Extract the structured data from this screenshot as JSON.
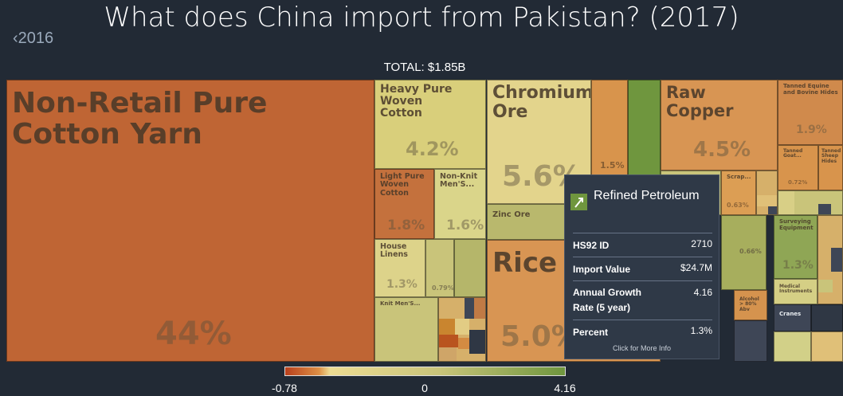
{
  "header": {
    "title": "What does China import from Pakistan? (2017)",
    "back_label": "2016",
    "total_label": "TOTAL: $1.85B"
  },
  "tooltip": {
    "name": "Refined Petroleum",
    "icon": "petroleum-icon",
    "rows": [
      {
        "key": "HS92 ID",
        "value": "2710"
      },
      {
        "key": "Import Value",
        "value": "$24.7M"
      },
      {
        "key": "Annual Growth Rate (5 year)",
        "value": "4.16"
      },
      {
        "key": "Percent",
        "value": "1.3%"
      }
    ],
    "more": "Click for More Info"
  },
  "chart_data": {
    "type": "treemap",
    "title": "What does China import from Pakistan? (2017)",
    "total": "$1.85B",
    "color_scale": {
      "label": "Annual Growth Rate (5 year)",
      "min": -0.78,
      "mid": 0,
      "max": 4.16,
      "ticks": [
        "-0.78",
        "0",
        "4.16"
      ]
    },
    "items": [
      {
        "name": "Non-Retail Pure Cotton Yarn",
        "percent": "44%"
      },
      {
        "name": "Heavy Pure Woven Cotton",
        "percent": "4.2%"
      },
      {
        "name": "Light Pure Woven Cotton",
        "percent": "1.8%"
      },
      {
        "name": "Non-Knit Men'S...",
        "percent": "1.6%"
      },
      {
        "name": "House Linens",
        "percent": "1.3%"
      },
      {
        "name": "",
        "percent": "0.79%"
      },
      {
        "name": "Knit Men'S...",
        "percent": ""
      },
      {
        "name": "Chromium Ore",
        "percent": "5.6%"
      },
      {
        "name": "",
        "percent": "1.5%"
      },
      {
        "name": "Zinc Ore",
        "percent": ""
      },
      {
        "name": "Rice",
        "percent": "5.0%"
      },
      {
        "name": "Raw Copper",
        "percent": "4.5%"
      },
      {
        "name": "Scrap...",
        "percent": "0.63%"
      },
      {
        "name": "",
        "percent": "0.66%"
      },
      {
        "name": "Tanned Equine and Bovine Hides",
        "percent": "1.9%"
      },
      {
        "name": "Tanned Goat...",
        "percent": "0.72%"
      },
      {
        "name": "Tanned Sheep Hides",
        "percent": ""
      },
      {
        "name": "Surveying Equipment",
        "percent": "1.3%"
      },
      {
        "name": "Medical Instruments",
        "percent": ""
      },
      {
        "name": "Alcohol > 80% Abv",
        "percent": ""
      },
      {
        "name": "Cranes",
        "percent": ""
      },
      {
        "name": "Refined Petroleum",
        "percent": "1.3%",
        "hs92_id": "2710",
        "import_value": "$24.7M",
        "annual_growth_rate_5y": 4.16
      }
    ]
  }
}
